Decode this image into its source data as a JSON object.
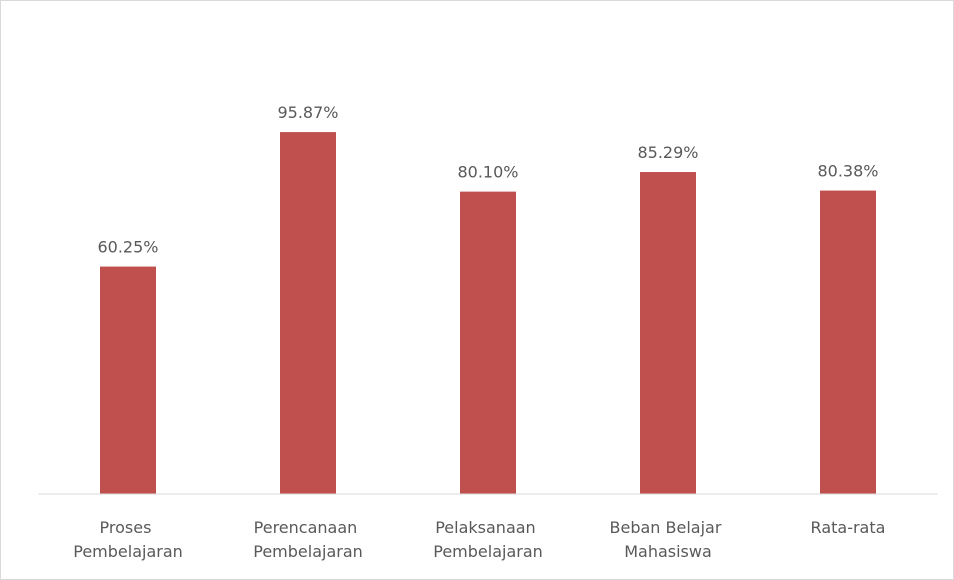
{
  "chart_data": {
    "type": "bar",
    "categories": [
      "Proses Pembelajaran",
      "Perencanaan Pembelajaran",
      "Pelaksanaan Pembelajaran",
      "Beban Belajar Mahasiswa",
      "Rata-rata"
    ],
    "values": [
      60.25,
      95.87,
      80.1,
      85.29,
      80.38
    ],
    "value_labels": [
      "60.25%",
      "95.87%",
      "80.10%",
      "85.29%",
      "80.38%"
    ],
    "color": "#c0504d",
    "ylim": [
      0,
      120
    ]
  }
}
